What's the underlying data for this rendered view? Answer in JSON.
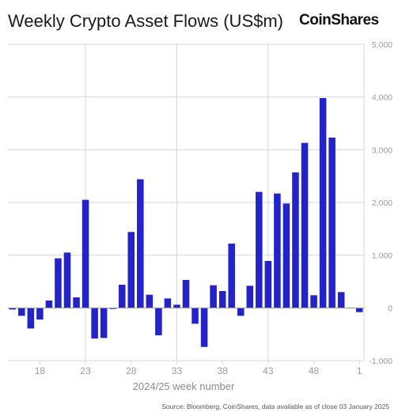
{
  "title": "Weekly Crypto Asset Flows (US$m)",
  "brand": "CoinShares",
  "source": "Source: Bloomberg, CoinShares, data available as of close 03 January 2025",
  "colors": {
    "bar": "#2323c8",
    "grid": "#d6d6d6",
    "axis_text": "#9a9a9a",
    "zero_line": "#9a9a9a"
  },
  "chart_data": {
    "type": "bar",
    "title": "Weekly Crypto Asset Flows (US$m)",
    "xlabel": "2024/25 week number",
    "ylabel": "",
    "ylim": [
      -1000,
      5000
    ],
    "yticks": [
      -1000,
      0,
      1000,
      2000,
      3000,
      4000,
      5000
    ],
    "ytick_labels": [
      "-1,000",
      "0",
      "1,000",
      "2,000",
      "3,000",
      "4,000",
      "5,000"
    ],
    "xtick_labels": [
      "18",
      "23",
      "28",
      "33",
      "38",
      "43",
      "48",
      "1"
    ],
    "xtick_weeks": [
      18,
      23,
      28,
      33,
      38,
      43,
      48,
      53
    ],
    "grid_x_weeks": [
      23,
      33,
      43
    ],
    "weeks": [
      15,
      16,
      17,
      18,
      19,
      20,
      21,
      22,
      23,
      24,
      25,
      26,
      27,
      28,
      29,
      30,
      31,
      32,
      33,
      34,
      35,
      36,
      37,
      38,
      39,
      40,
      41,
      42,
      43,
      44,
      45,
      46,
      47,
      48,
      49,
      50,
      51,
      52,
      53
    ],
    "values": [
      -30,
      -150,
      -390,
      -220,
      140,
      940,
      1050,
      200,
      2050,
      -580,
      -570,
      -20,
      440,
      1440,
      2440,
      250,
      -520,
      180,
      60,
      530,
      -300,
      -740,
      430,
      320,
      1220,
      -150,
      420,
      2200,
      890,
      2170,
      1980,
      2570,
      3130,
      240,
      3980,
      3230,
      300,
      0,
      -80
    ],
    "grid": true,
    "legend": "none"
  }
}
